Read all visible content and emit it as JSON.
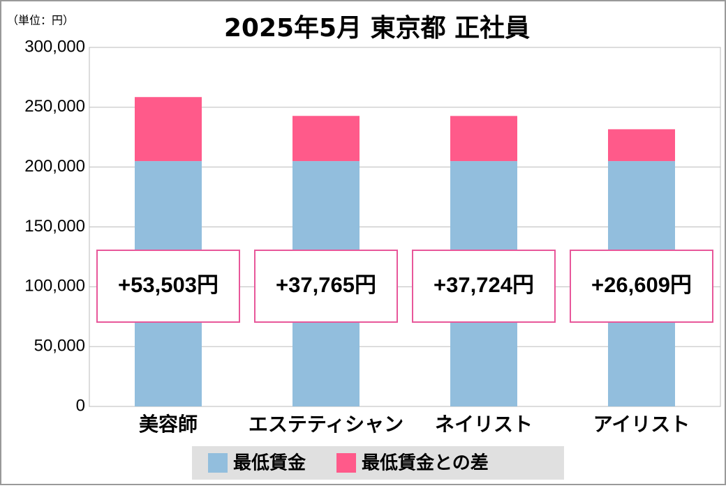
{
  "chart_data": {
    "type": "stacked-bar",
    "title": "2025年5月 東京都 正社員",
    "unit": "（単位：円）",
    "categories": [
      "美容師",
      "エステティシャン",
      "ネイリスト",
      "アイリスト"
    ],
    "series": [
      {
        "name": "最低賃金",
        "color": "#92bedd",
        "values": [
          205000,
          205000,
          205000,
          205000
        ]
      },
      {
        "name": "最低賃金との差",
        "color": "#ff5a8a",
        "values": [
          53503,
          37765,
          37724,
          26609
        ],
        "value_labels": [
          "+53,503円",
          "+37,765円",
          "+37,724円",
          "+26,609円"
        ]
      }
    ],
    "ylim": [
      0,
      300000
    ],
    "yticks": [
      0,
      {
        "value": 50000,
        "label": "50,000"
      },
      {
        "value": 100000,
        "label": "100,000"
      },
      {
        "value": 150000,
        "label": "150,000"
      },
      {
        "value": 200000,
        "label": "200,000"
      },
      {
        "value": 250000,
        "label": "250,000"
      },
      {
        "value": 300000,
        "label": "300,000"
      }
    ],
    "grid": true
  }
}
